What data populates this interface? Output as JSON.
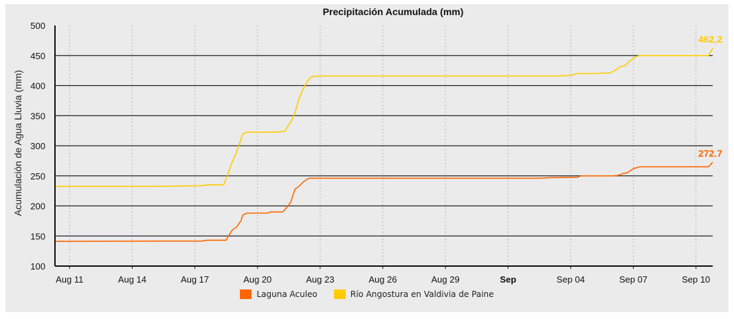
{
  "chart_data": {
    "type": "line",
    "title": "Precipitación Acumulada (mm)",
    "ylabel": "Acumulación de Agua Lluvia (mm)",
    "xlabel": "",
    "ylim": [
      100,
      500
    ],
    "yticks": [
      100,
      150,
      200,
      250,
      300,
      350,
      400,
      450,
      500
    ],
    "x_range_days": [
      10.3,
      41.8
    ],
    "xticks": [
      {
        "day": 11,
        "label": "Aug 11",
        "bold": false
      },
      {
        "day": 14,
        "label": "Aug 14",
        "bold": false
      },
      {
        "day": 17,
        "label": "Aug 17",
        "bold": false
      },
      {
        "day": 20,
        "label": "Aug 20",
        "bold": false
      },
      {
        "day": 23,
        "label": "Aug 23",
        "bold": false
      },
      {
        "day": 26,
        "label": "Aug 26",
        "bold": false
      },
      {
        "day": 29,
        "label": "Aug 29",
        "bold": false
      },
      {
        "day": 32,
        "label": "Sep",
        "bold": true
      },
      {
        "day": 35,
        "label": "Sep 04",
        "bold": false
      },
      {
        "day": 38,
        "label": "Sep 07",
        "bold": false
      },
      {
        "day": 41,
        "label": "Sep 10",
        "bold": false
      }
    ],
    "grid": "horizontal solid, vertical dotted",
    "legend_position": "bottom-center",
    "series": [
      {
        "name": "Laguna Aculeo",
        "color": "#ff6600",
        "end_label": "272.7",
        "points": [
          [
            10.3,
            141
          ],
          [
            15.0,
            141.5
          ],
          [
            17.3,
            141.5
          ],
          [
            17.6,
            143
          ],
          [
            18.3,
            143
          ],
          [
            18.5,
            143
          ],
          [
            18.6,
            150
          ],
          [
            18.8,
            160
          ],
          [
            19.0,
            165
          ],
          [
            19.2,
            175
          ],
          [
            19.3,
            185
          ],
          [
            19.5,
            188
          ],
          [
            20.0,
            188
          ],
          [
            20.5,
            188
          ],
          [
            20.6,
            190
          ],
          [
            21.0,
            190
          ],
          [
            21.2,
            190
          ],
          [
            21.4,
            197
          ],
          [
            21.6,
            207
          ],
          [
            21.7,
            218
          ],
          [
            21.8,
            228
          ],
          [
            22.0,
            233
          ],
          [
            22.2,
            240
          ],
          [
            22.4,
            245
          ],
          [
            22.5,
            246
          ],
          [
            25.0,
            246
          ],
          [
            28.0,
            246
          ],
          [
            31.0,
            246
          ],
          [
            33.5,
            246
          ],
          [
            34.0,
            247
          ],
          [
            35.3,
            247.5
          ],
          [
            35.5,
            250
          ],
          [
            37.0,
            250
          ],
          [
            37.3,
            251
          ],
          [
            37.5,
            254
          ],
          [
            37.7,
            255
          ],
          [
            38.0,
            262
          ],
          [
            38.3,
            265
          ],
          [
            40.0,
            265
          ],
          [
            41.6,
            265
          ],
          [
            41.8,
            272.7
          ]
        ]
      },
      {
        "name": "Río Angostura en Valdivia de Paine",
        "color": "#ffcc00",
        "end_label": "462,2",
        "points": [
          [
            10.3,
            232.5
          ],
          [
            13.0,
            232.5
          ],
          [
            15.0,
            232.5
          ],
          [
            17.3,
            233.5
          ],
          [
            17.6,
            235
          ],
          [
            18.3,
            235
          ],
          [
            18.4,
            236
          ],
          [
            18.5,
            245
          ],
          [
            18.7,
            265
          ],
          [
            18.85,
            278
          ],
          [
            19.0,
            290
          ],
          [
            19.15,
            305
          ],
          [
            19.3,
            320
          ],
          [
            19.5,
            322.5
          ],
          [
            20.5,
            322.5
          ],
          [
            21.0,
            323
          ],
          [
            21.3,
            324
          ],
          [
            21.5,
            335
          ],
          [
            21.6,
            340
          ],
          [
            21.8,
            355
          ],
          [
            22.0,
            380
          ],
          [
            22.2,
            395
          ],
          [
            22.4,
            408
          ],
          [
            22.6,
            415
          ],
          [
            23.0,
            416
          ],
          [
            26.0,
            416
          ],
          [
            29.0,
            416
          ],
          [
            32.0,
            416
          ],
          [
            34.3,
            416
          ],
          [
            35.0,
            417
          ],
          [
            35.3,
            420
          ],
          [
            36.0,
            420
          ],
          [
            36.9,
            421
          ],
          [
            37.2,
            427
          ],
          [
            37.4,
            432
          ],
          [
            37.6,
            433
          ],
          [
            37.8,
            440
          ],
          [
            38.1,
            448
          ],
          [
            38.3,
            450
          ],
          [
            40.0,
            450
          ],
          [
            41.6,
            450
          ],
          [
            41.8,
            462.2
          ]
        ]
      }
    ]
  }
}
